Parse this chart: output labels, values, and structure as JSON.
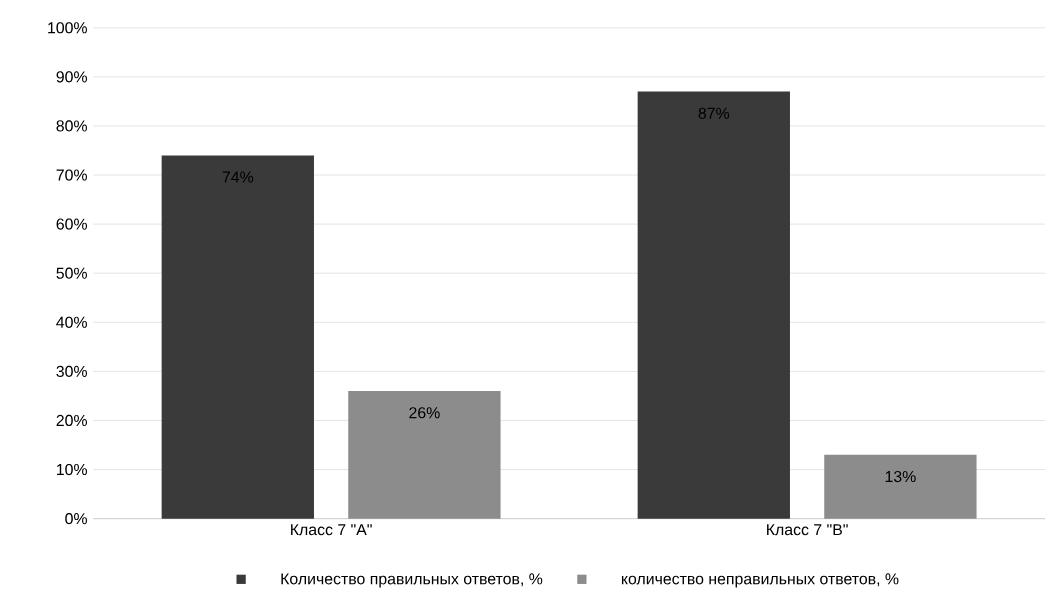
{
  "chart_data": {
    "type": "bar",
    "categories": [
      "Класс 7 \"А\"",
      "Класс 7 \"В\""
    ],
    "series": [
      {
        "name": "Количество правильных ответов, %",
        "color": "#3a3a3a",
        "values": [
          74,
          87
        ],
        "value_labels": [
          "74%",
          "87%"
        ]
      },
      {
        "name": "количество неправильных ответов, %",
        "color": "#8c8c8c",
        "values": [
          26,
          13
        ],
        "value_labels": [
          "26%",
          "13%"
        ]
      }
    ],
    "ylim": [
      0,
      100
    ],
    "yticks": [
      {
        "value": 0,
        "label": "0%"
      },
      {
        "value": 10,
        "label": "10%"
      },
      {
        "value": 20,
        "label": "20%"
      },
      {
        "value": 30,
        "label": "30%"
      },
      {
        "value": 40,
        "label": "40%"
      },
      {
        "value": 50,
        "label": "50%"
      },
      {
        "value": 60,
        "label": "60%"
      },
      {
        "value": 70,
        "label": "70%"
      },
      {
        "value": 80,
        "label": "80%"
      },
      {
        "value": 90,
        "label": "90%"
      },
      {
        "value": 100,
        "label": "100%"
      }
    ],
    "grid": "y",
    "legend": "bottom"
  }
}
